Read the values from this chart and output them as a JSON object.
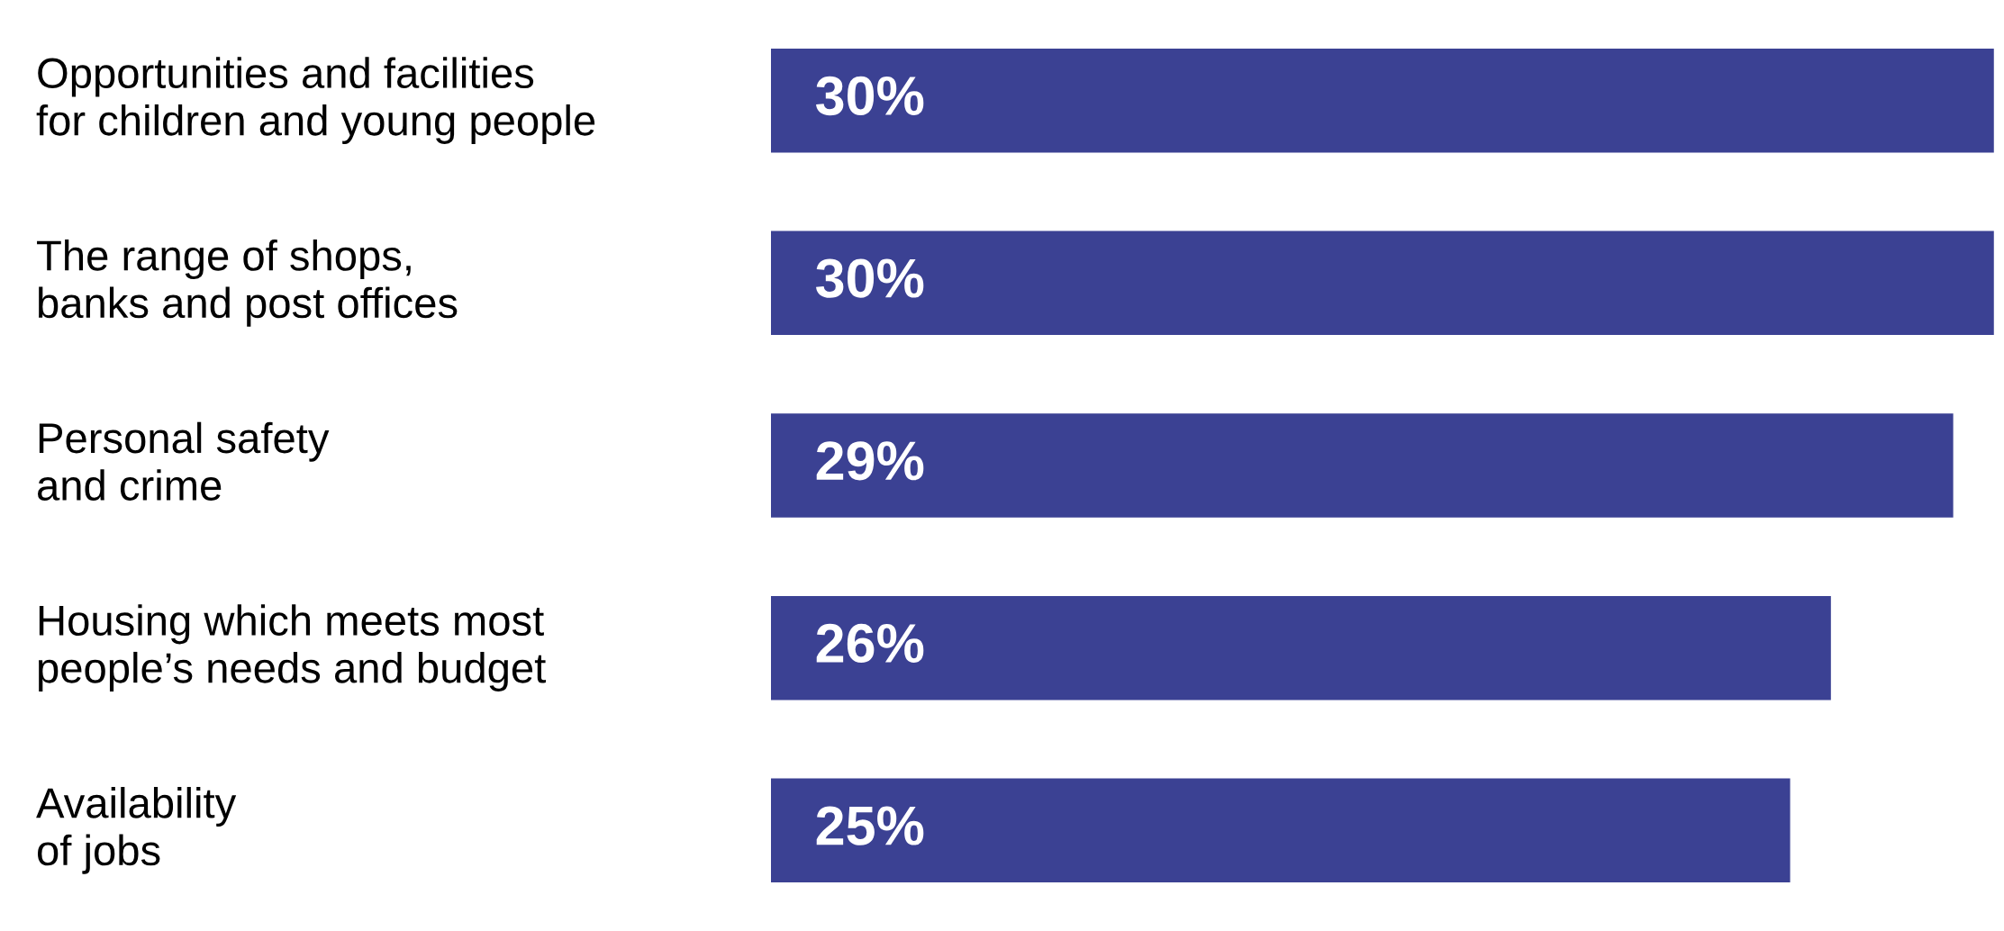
{
  "chart_data": {
    "type": "bar",
    "orientation": "horizontal",
    "categories": [
      "Opportunities and facilities\nfor children and young people",
      "The range of shops,\nbanks and post offices",
      "Personal safety\nand crime",
      "Housing which meets most\npeople’s needs and budget",
      "Availability\nof jobs"
    ],
    "values": [
      30,
      30,
      29,
      26,
      25
    ],
    "value_labels": [
      "30%",
      "30%",
      "29%",
      "26%",
      "25%"
    ],
    "color": "#3b4193"
  }
}
